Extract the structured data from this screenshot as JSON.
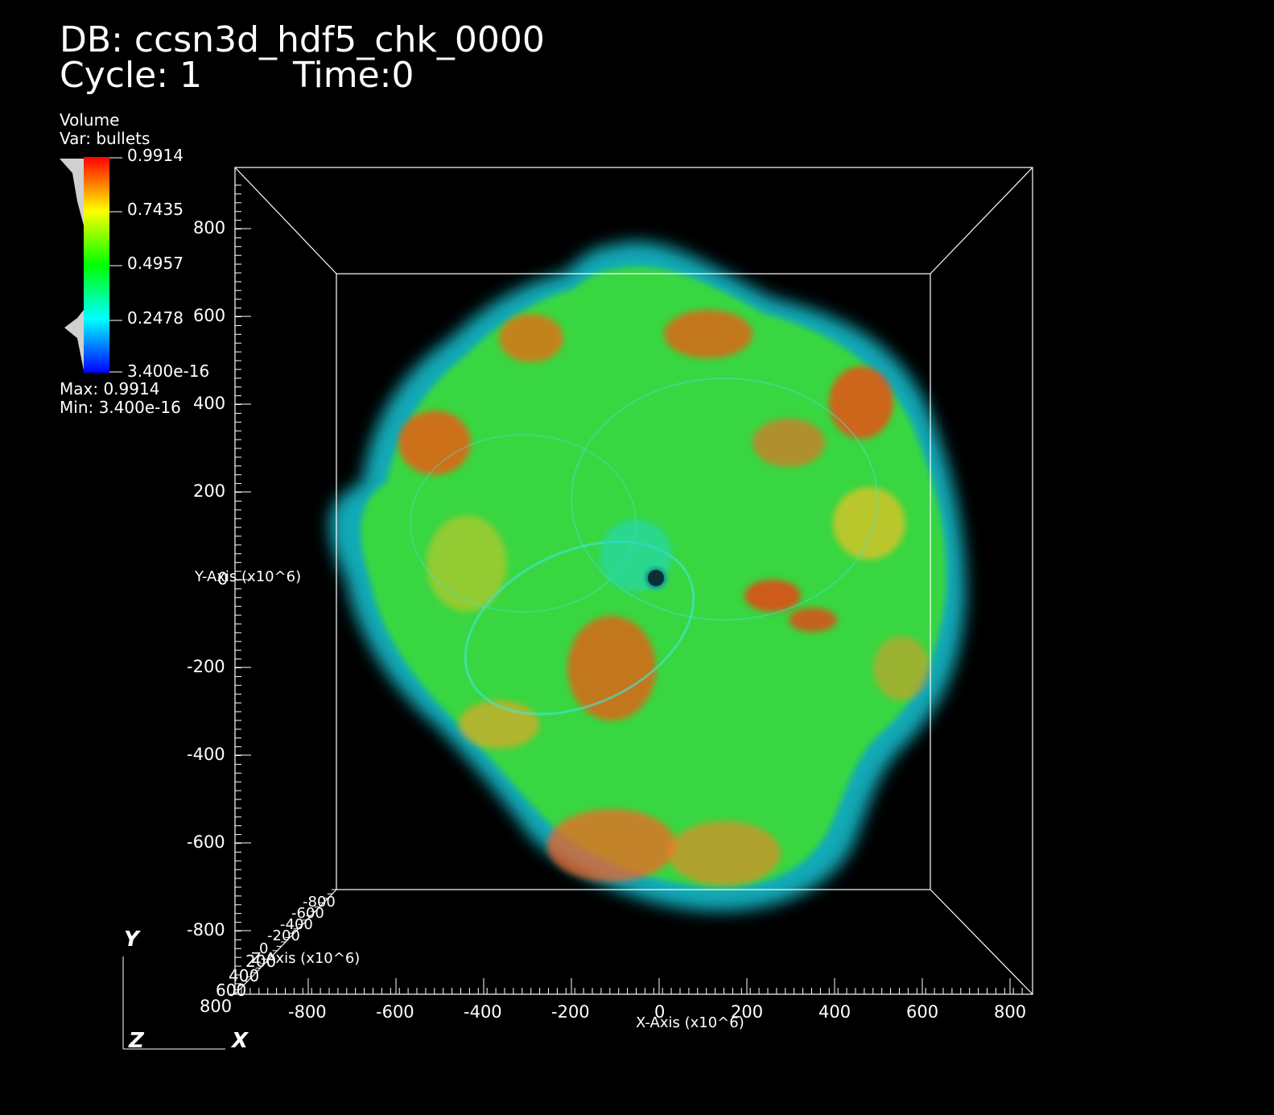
{
  "header": {
    "db_line": "DB: ccsn3d_hdf5_chk_0000",
    "cycle_label": "Cycle: 1",
    "time_label": "Time:0"
  },
  "legend": {
    "plot_type": "Volume",
    "variable": "Var: bullets",
    "ticks": [
      "0.9914",
      "0.7435",
      "0.4957",
      "0.2478",
      "3.400e-16"
    ],
    "max_label": "Max:  0.9914",
    "min_label": "Min:  3.400e-16",
    "colors": [
      "#ff0000",
      "#ffff00",
      "#00ff00",
      "#00ffff",
      "#0000ff"
    ]
  },
  "axes": {
    "y_axis_title": "Y-Axis (x10^6)",
    "x_axis_title": "X-Axis (x10^6)",
    "z_axis_title": "Z-Axis (x10^6)",
    "y_ticks": [
      "800",
      "600",
      "400",
      "200",
      "0",
      "-200",
      "-400",
      "-600",
      "-800"
    ],
    "x_ticks": [
      "-800",
      "-600",
      "-400",
      "-200",
      "0",
      "200",
      "400",
      "600",
      "800"
    ],
    "z_ticks": [
      "800",
      "600",
      "400",
      "200",
      "0",
      "-200",
      "-400",
      "-600",
      "-800"
    ]
  },
  "triad": {
    "x": "X",
    "y": "Y",
    "z": "Z"
  }
}
